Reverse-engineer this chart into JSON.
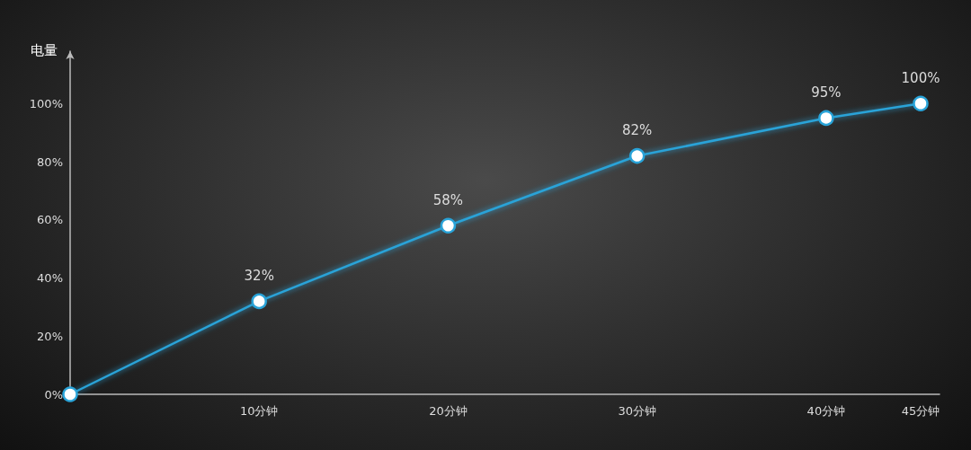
{
  "chart_data": {
    "type": "line",
    "ylabel": "电量",
    "x": [
      0,
      10,
      20,
      30,
      40,
      45
    ],
    "series": [
      {
        "color": "#29a3d8",
        "values": [
          0,
          32,
          58,
          82,
          95,
          100
        ],
        "value_labels": [
          null,
          "32%",
          "58%",
          "82%",
          "95%",
          "100%"
        ]
      }
    ],
    "xlim": [
      0,
      46
    ],
    "xticks": [
      {
        "value": 10,
        "label": "10分钟"
      },
      {
        "value": 20,
        "label": "20分钟"
      },
      {
        "value": 30,
        "label": "30分钟"
      },
      {
        "value": 40,
        "label": "40分钟"
      },
      {
        "value": 45,
        "label": "45分钟"
      }
    ],
    "ylim": [
      0,
      118
    ],
    "yticks": [
      {
        "value": 0,
        "label": "0%"
      },
      {
        "value": 20,
        "label": "20%"
      },
      {
        "value": 40,
        "label": "40%"
      },
      {
        "value": 60,
        "label": "60%"
      },
      {
        "value": 80,
        "label": "80%"
      },
      {
        "value": 100,
        "label": "100%"
      }
    ],
    "marker": "circle",
    "line_style": "solid",
    "grid": false
  }
}
